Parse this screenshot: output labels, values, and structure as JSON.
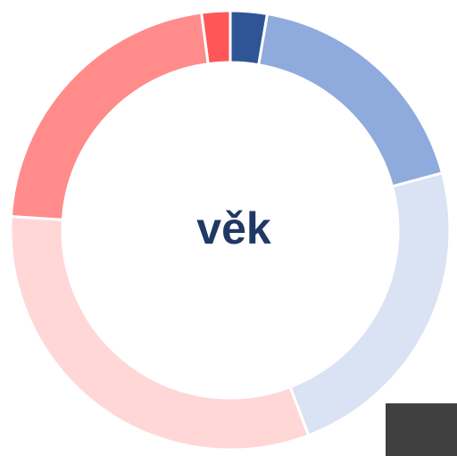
{
  "chart_data": {
    "type": "donut",
    "title": "věk",
    "values": [
      2.7,
      18.1,
      23.4,
      31.8,
      21.9,
      2.1
    ],
    "colors": [
      "#2f5597",
      "#8faadc",
      "#dae3f3",
      "#ffd7d7",
      "#ff8b8b",
      "#ff5757"
    ]
  }
}
